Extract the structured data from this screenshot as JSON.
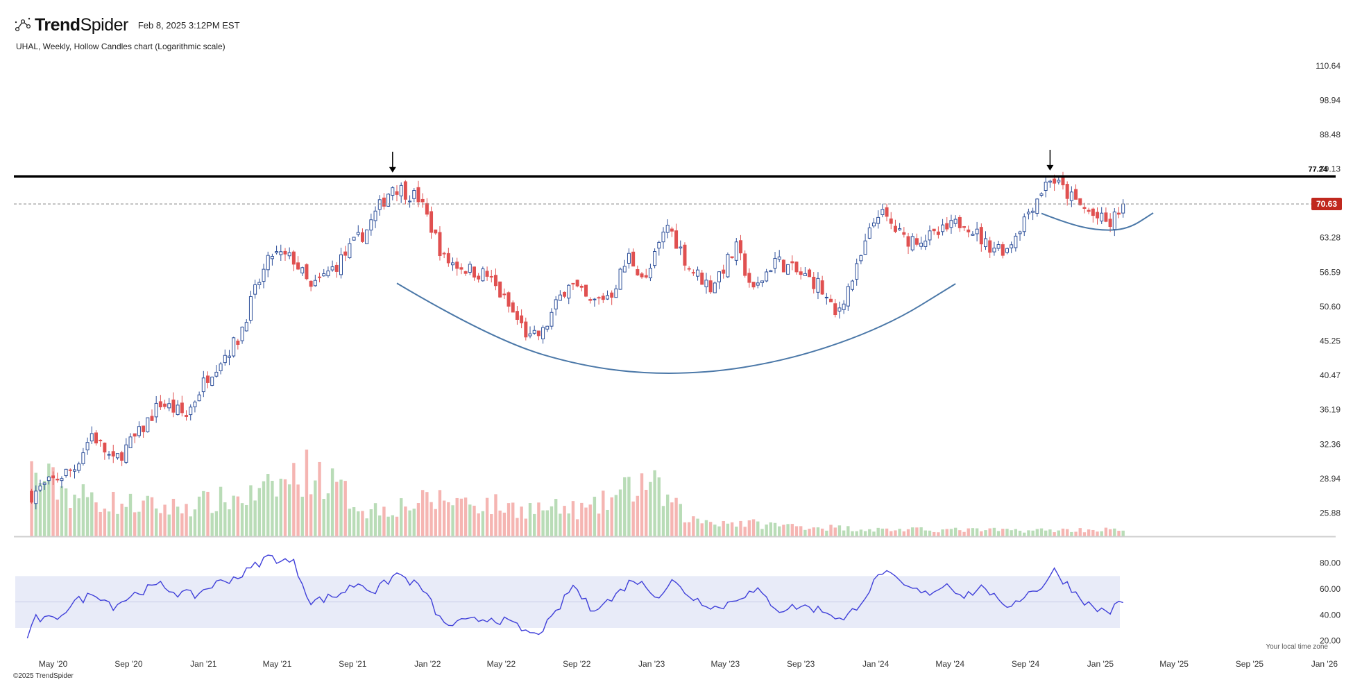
{
  "header": {
    "brand_bold": "Trend",
    "brand_light": "Spider",
    "timestamp": "Feb 8, 2025 3:12PM EST",
    "subtitle": "UHAL, Weekly, Hollow Candles chart (Logarithmic scale)"
  },
  "footer": {
    "copyright": "©2025 TrendSpider",
    "timezone": "Your local time zone"
  },
  "colors": {
    "up": "#2d4f9a",
    "down": "#e05050",
    "vol_up": "#b9dcb7",
    "vol_down": "#f5b5b2",
    "rsi": "#3f3fd9",
    "rsi_band": "#e8ebf8",
    "curve": "#4b78a8",
    "last_price_bg": "#c0281e"
  },
  "chart_data": [
    {
      "type": "candlestick",
      "symbol": "UHAL",
      "interval": "Weekly",
      "scale": "log",
      "ylim": [
        24.0,
        117.0
      ],
      "y_ticks": [
        "110.64",
        "98.94",
        "88.48",
        "79.13",
        "70.63",
        "63.28",
        "56.59",
        "50.60",
        "45.25",
        "40.47",
        "36.19",
        "32.36",
        "28.94",
        "25.88"
      ],
      "x_ticks": [
        "May '20",
        "Sep '20",
        "Jan '21",
        "May '21",
        "Sep '21",
        "Jan '22",
        "May '22",
        "Sep '22",
        "Jan '23",
        "May '23",
        "Sep '23",
        "Jan '24",
        "May '24",
        "Sep '24",
        "Jan '25",
        "May '25",
        "Sep '25",
        "Jan '26"
      ],
      "resistance": {
        "value": 77.24,
        "label": "77.24"
      },
      "last_price": {
        "value": 70.63,
        "label": "70.63"
      },
      "arrow_annotations": [
        {
          "date": "2021-11-05",
          "price": 77.5
        },
        {
          "date": "2024-10-11",
          "price": 78.0
        }
      ],
      "cup_curve": [
        {
          "date": "2021-11-12",
          "price": 54.6
        },
        {
          "date": "2022-04-15",
          "price": 45.5
        },
        {
          "date": "2022-09-30",
          "price": 41.2
        },
        {
          "date": "2023-03-10",
          "price": 40.5
        },
        {
          "date": "2023-08-18",
          "price": 42.6
        },
        {
          "date": "2024-01-19",
          "price": 47.5
        },
        {
          "date": "2024-05-10",
          "price": 54.5
        }
      ],
      "handle_curve": [
        {
          "date": "2024-09-27",
          "price": 68.5
        },
        {
          "date": "2024-11-08",
          "price": 66.3
        },
        {
          "date": "2024-12-27",
          "price": 64.8
        },
        {
          "date": "2025-02-14",
          "price": 65.0
        },
        {
          "date": "2025-03-28",
          "price": 68.6
        }
      ],
      "weekly_close_path": [
        {
          "date": "2020-03-27",
          "close": 27.5
        },
        {
          "date": "2020-06-05",
          "close": 30.0
        },
        {
          "date": "2020-07-03",
          "close": 33.5
        },
        {
          "date": "2020-08-07",
          "close": 30.5
        },
        {
          "date": "2020-09-18",
          "close": 33.5
        },
        {
          "date": "2020-10-23",
          "close": 37.0
        },
        {
          "date": "2020-12-04",
          "close": 35.5
        },
        {
          "date": "2021-01-08",
          "close": 40.5
        },
        {
          "date": "2021-02-26",
          "close": 45.5
        },
        {
          "date": "2021-04-02",
          "close": 55.0
        },
        {
          "date": "2021-04-23",
          "close": 60.0
        },
        {
          "date": "2021-05-28",
          "close": 59.0
        },
        {
          "date": "2021-06-25",
          "close": 53.5
        },
        {
          "date": "2021-08-06",
          "close": 58.0
        },
        {
          "date": "2021-09-24",
          "close": 65.0
        },
        {
          "date": "2021-11-05",
          "close": 75.0
        },
        {
          "date": "2021-12-17",
          "close": 72.0
        },
        {
          "date": "2022-01-28",
          "close": 59.0
        },
        {
          "date": "2022-03-11",
          "close": 57.0
        },
        {
          "date": "2022-04-08",
          "close": 56.0
        },
        {
          "date": "2022-05-20",
          "close": 49.5
        },
        {
          "date": "2022-06-17",
          "close": 45.5
        },
        {
          "date": "2022-07-08",
          "close": 46.5
        },
        {
          "date": "2022-08-19",
          "close": 55.0
        },
        {
          "date": "2022-09-23",
          "close": 51.0
        },
        {
          "date": "2022-10-28",
          "close": 53.0
        },
        {
          "date": "2022-11-25",
          "close": 59.5
        },
        {
          "date": "2022-12-23",
          "close": 55.0
        },
        {
          "date": "2023-01-27",
          "close": 66.0
        },
        {
          "date": "2023-03-03",
          "close": 57.5
        },
        {
          "date": "2023-04-07",
          "close": 54.0
        },
        {
          "date": "2023-05-19",
          "close": 61.0
        },
        {
          "date": "2023-06-16",
          "close": 53.0
        },
        {
          "date": "2023-07-21",
          "close": 59.0
        },
        {
          "date": "2023-08-25",
          "close": 56.5
        },
        {
          "date": "2023-09-29",
          "close": 54.5
        },
        {
          "date": "2023-10-27",
          "close": 49.0
        },
        {
          "date": "2023-12-01",
          "close": 57.0
        },
        {
          "date": "2024-01-05",
          "close": 69.0
        },
        {
          "date": "2024-02-16",
          "close": 63.0
        },
        {
          "date": "2024-04-05",
          "close": 63.5
        },
        {
          "date": "2024-05-24",
          "close": 67.0
        },
        {
          "date": "2024-06-28",
          "close": 62.0
        },
        {
          "date": "2024-08-02",
          "close": 61.0
        },
        {
          "date": "2024-09-06",
          "close": 69.0
        },
        {
          "date": "2024-10-11",
          "close": 77.0
        },
        {
          "date": "2024-11-22",
          "close": 71.0
        },
        {
          "date": "2024-12-20",
          "close": 68.0
        },
        {
          "date": "2025-01-17",
          "close": 66.0
        },
        {
          "date": "2025-02-07",
          "close": 70.63
        }
      ],
      "volume_relative_path": [
        {
          "date": "2020-03-27",
          "v": 0.85
        },
        {
          "date": "2020-06-05",
          "v": 0.55
        },
        {
          "date": "2020-08-07",
          "v": 0.45
        },
        {
          "date": "2020-11-06",
          "v": 0.38
        },
        {
          "date": "2021-04-02",
          "v": 0.55
        },
        {
          "date": "2021-06-25",
          "v": 0.9
        },
        {
          "date": "2021-09-24",
          "v": 0.35
        },
        {
          "date": "2022-02-04",
          "v": 0.5
        },
        {
          "date": "2022-05-20",
          "v": 0.38
        },
        {
          "date": "2022-09-23",
          "v": 0.35
        },
        {
          "date": "2022-12-23",
          "v": 0.75
        },
        {
          "date": "2023-03-03",
          "v": 0.22
        },
        {
          "date": "2023-07-21",
          "v": 0.15
        },
        {
          "date": "2024-01-05",
          "v": 0.09
        },
        {
          "date": "2024-09-06",
          "v": 0.08
        },
        {
          "date": "2025-02-07",
          "v": 0.09
        }
      ]
    },
    {
      "type": "line",
      "indicator": "RSI",
      "ylim": [
        15,
        90
      ],
      "y_ticks": [
        "80.00",
        "60.00",
        "40.00",
        "20.00"
      ],
      "band": [
        30,
        70
      ],
      "midline": 50,
      "series": [
        {
          "values": [
            {
              "date": "2020-03-20",
              "v": 22
            },
            {
              "date": "2020-04-03",
              "v": 37
            },
            {
              "date": "2020-05-01",
              "v": 36
            },
            {
              "date": "2020-06-05",
              "v": 50
            },
            {
              "date": "2020-07-10",
              "v": 57
            },
            {
              "date": "2020-08-07",
              "v": 47
            },
            {
              "date": "2020-09-18",
              "v": 58
            },
            {
              "date": "2020-10-23",
              "v": 63
            },
            {
              "date": "2020-11-20",
              "v": 57
            },
            {
              "date": "2020-12-18",
              "v": 55
            },
            {
              "date": "2021-01-15",
              "v": 63
            },
            {
              "date": "2021-03-05",
              "v": 71
            },
            {
              "date": "2021-04-16",
              "v": 85
            },
            {
              "date": "2021-05-28",
              "v": 80
            },
            {
              "date": "2021-06-25",
              "v": 50
            },
            {
              "date": "2021-08-06",
              "v": 55
            },
            {
              "date": "2021-09-10",
              "v": 65
            },
            {
              "date": "2021-10-08",
              "v": 58
            },
            {
              "date": "2021-11-12",
              "v": 72
            },
            {
              "date": "2021-12-24",
              "v": 60
            },
            {
              "date": "2022-01-28",
              "v": 32
            },
            {
              "date": "2022-03-11",
              "v": 35
            },
            {
              "date": "2022-04-15",
              "v": 38
            },
            {
              "date": "2022-05-13",
              "v": 34
            },
            {
              "date": "2022-06-24",
              "v": 24
            },
            {
              "date": "2022-07-22",
              "v": 36
            },
            {
              "date": "2022-08-26",
              "v": 63
            },
            {
              "date": "2022-09-23",
              "v": 45
            },
            {
              "date": "2022-10-28",
              "v": 52
            },
            {
              "date": "2022-12-02",
              "v": 68
            },
            {
              "date": "2023-01-13",
              "v": 55
            },
            {
              "date": "2023-02-03",
              "v": 66
            },
            {
              "date": "2023-03-10",
              "v": 53
            },
            {
              "date": "2023-04-21",
              "v": 45
            },
            {
              "date": "2023-05-26",
              "v": 55
            },
            {
              "date": "2023-06-23",
              "v": 58
            },
            {
              "date": "2023-07-28",
              "v": 44
            },
            {
              "date": "2023-09-01",
              "v": 47
            },
            {
              "date": "2023-10-13",
              "v": 43
            },
            {
              "date": "2023-11-10",
              "v": 35
            },
            {
              "date": "2023-12-15",
              "v": 55
            },
            {
              "date": "2024-01-12",
              "v": 74
            },
            {
              "date": "2024-02-16",
              "v": 62
            },
            {
              "date": "2024-03-22",
              "v": 56
            },
            {
              "date": "2024-04-26",
              "v": 64
            },
            {
              "date": "2024-05-24",
              "v": 55
            },
            {
              "date": "2024-06-28",
              "v": 62
            },
            {
              "date": "2024-07-26",
              "v": 45
            },
            {
              "date": "2024-08-30",
              "v": 55
            },
            {
              "date": "2024-09-27",
              "v": 62
            },
            {
              "date": "2024-10-18",
              "v": 74
            },
            {
              "date": "2024-11-22",
              "v": 57
            },
            {
              "date": "2024-12-20",
              "v": 45
            },
            {
              "date": "2025-01-17",
              "v": 43
            },
            {
              "date": "2025-02-07",
              "v": 51
            }
          ]
        }
      ]
    }
  ]
}
